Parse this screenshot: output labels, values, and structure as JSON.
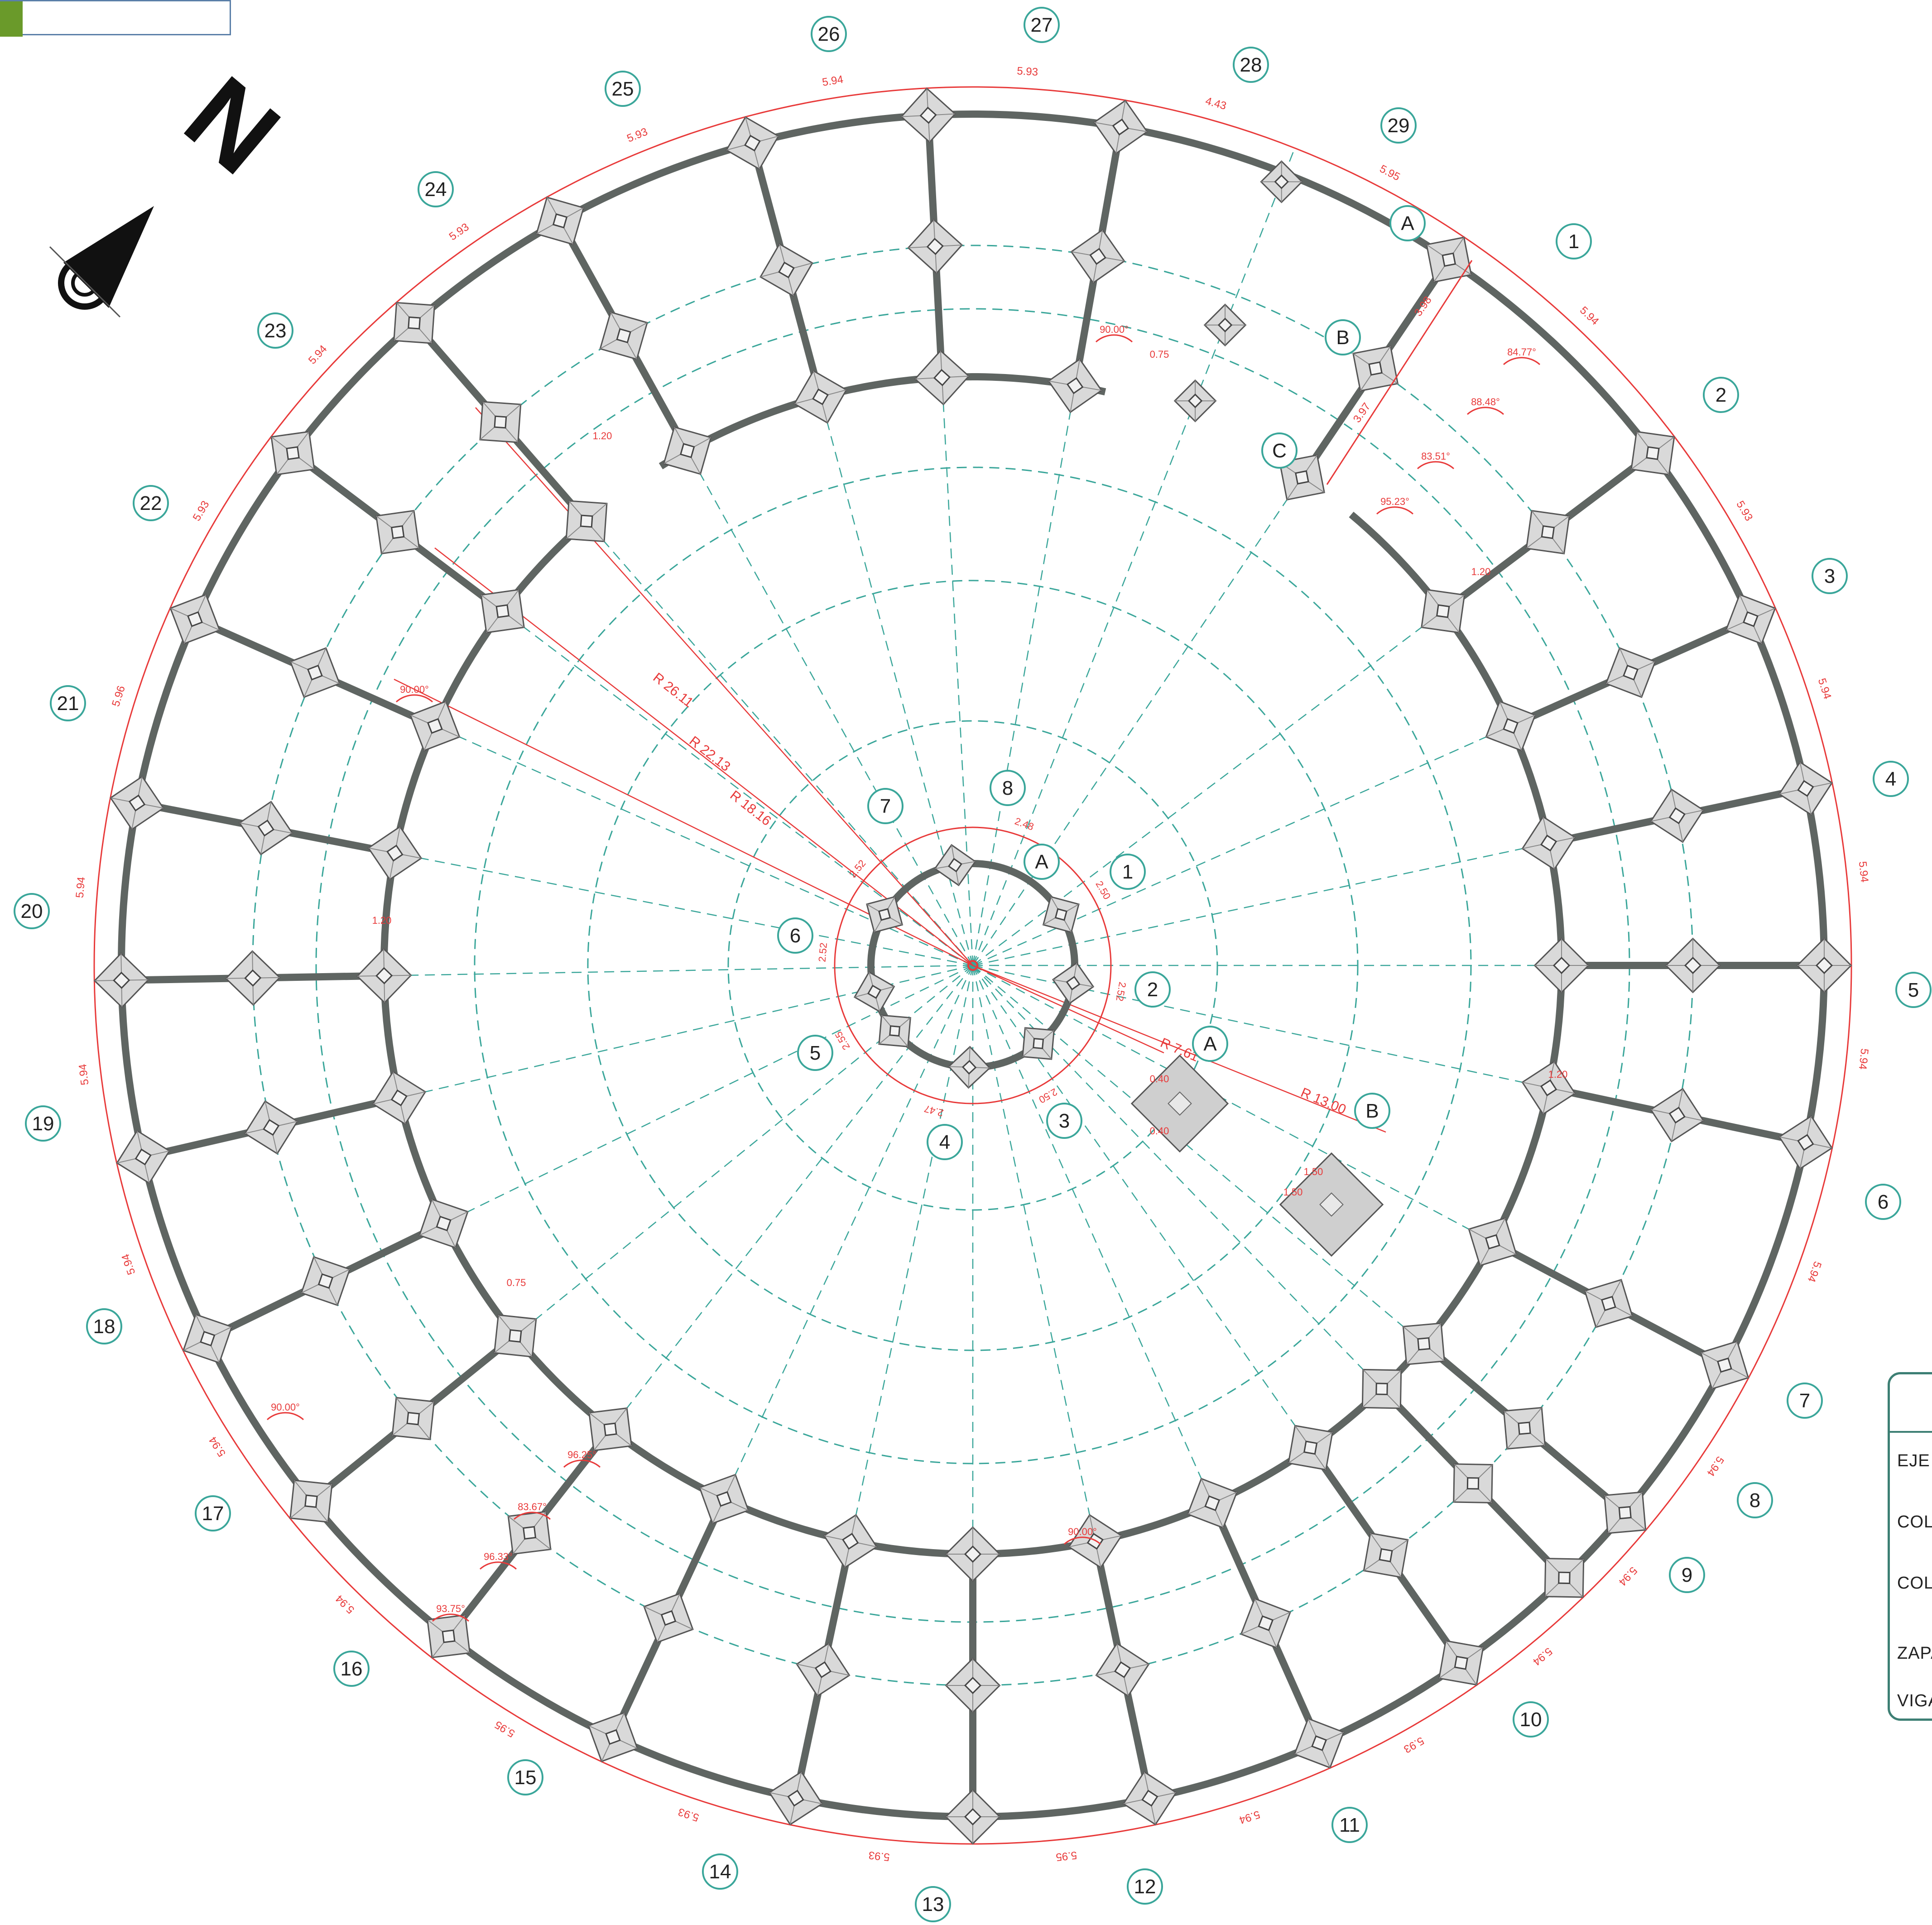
{
  "outer_axes": [
    "1",
    "2",
    "3",
    "4",
    "5",
    "6",
    "7",
    "8",
    "9",
    "10",
    "11",
    "12",
    "13",
    "14",
    "15",
    "16",
    "17",
    "18",
    "19",
    "20",
    "21",
    "22",
    "23",
    "24",
    "25",
    "26",
    "27",
    "28",
    "29"
  ],
  "inner_axes": [
    "1",
    "2",
    "3",
    "4",
    "5",
    "6",
    "7",
    "8"
  ],
  "ring_axes": [
    "A",
    "B",
    "C"
  ],
  "footing_axes": [
    "A",
    "B"
  ],
  "center_ring_label": "A",
  "north_label": "N",
  "radii_labels": [
    "R 26.11",
    "R 22.13",
    "R 18.16",
    "R 7.61",
    "R 13.00"
  ],
  "outer_arc_dims": [
    "5.94",
    "5.93",
    "5.94",
    "5.94",
    "5.94",
    "5.94",
    "5.94",
    "5.94",
    "5.94",
    "5.93",
    "5.94",
    "5.95",
    "5.93",
    "5.93",
    "5.95",
    "5.94",
    "5.94",
    "5.94",
    "5.94",
    "5.94",
    "5.96",
    "5.93",
    "5.94",
    "5.93",
    "5.93",
    "5.94",
    "5.93",
    "4.43",
    "5.95"
  ],
  "inner_ring_dims": [
    "2.48",
    "2.50",
    "2.52",
    "2.50",
    "2.47",
    "2.55",
    "2.52",
    "2.52"
  ],
  "column_dims": [
    "1.20",
    "1.20",
    "1.20",
    "1.20",
    "0.75",
    "0.75",
    "1.50",
    "1.50",
    "0.40",
    "0.40"
  ],
  "angles": [
    "90.00°",
    "84.77°",
    "88.48°",
    "83.51°",
    "95.23°",
    "96.25°",
    "83.67°",
    "96.33°",
    "93.75°",
    "90.00°",
    "90.00°",
    "90.00°"
  ],
  "slab_dims": [
    "3.98",
    "3.97"
  ],
  "legend": {
    "rows": [
      "EJE D",
      "COLU",
      "COLU",
      "ZAPA",
      "VIGA"
    ]
  },
  "colors": {
    "axis": "#3aa69a",
    "dimension": "#e83a3a",
    "beam": "#5f6562",
    "column_fill": "#d9d9d9",
    "legend_border": "#3d7f74"
  }
}
